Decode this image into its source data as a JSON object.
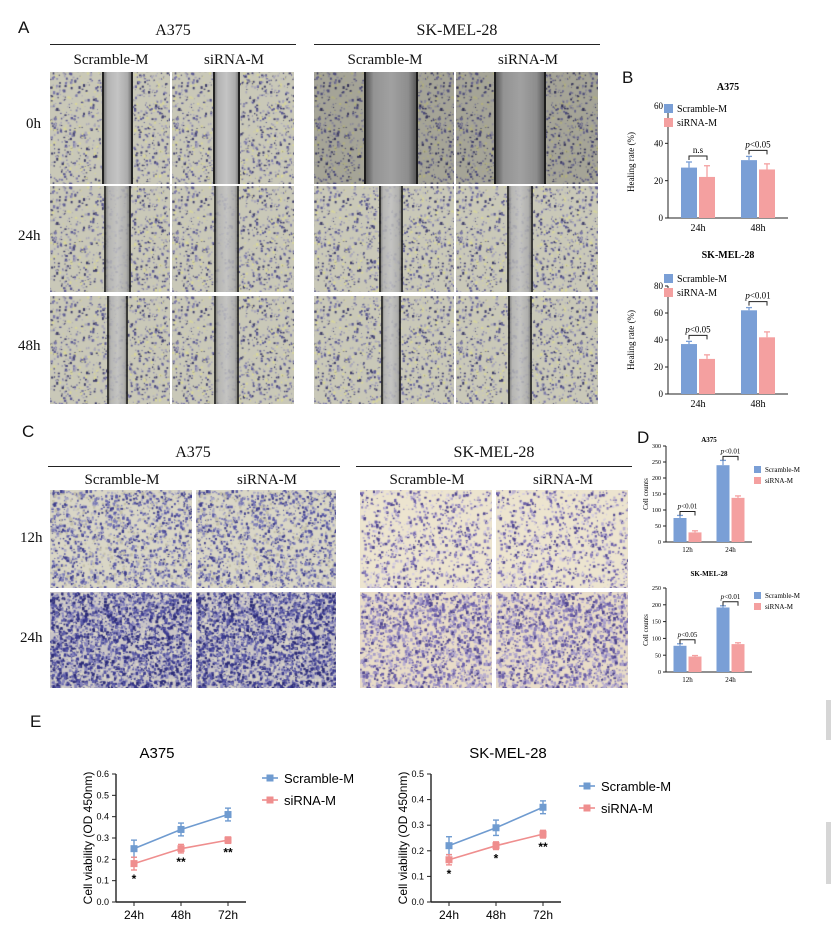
{
  "panels": {
    "a": "A",
    "b": "B",
    "c": "C",
    "d": "D",
    "e": "E"
  },
  "panel_a": {
    "cell_lines": [
      "A375",
      "SK-MEL-28"
    ],
    "groups": [
      "Scramble-M",
      "siRNA-M",
      "Scramble-M",
      "siRNA-M"
    ],
    "timepoints": [
      "0h",
      "24h",
      "48h"
    ],
    "wound_widths_relative": [
      [
        0.25,
        0.22,
        0.38,
        0.36
      ],
      [
        0.22,
        0.2,
        0.17,
        0.18
      ],
      [
        0.17,
        0.2,
        0.14,
        0.17
      ]
    ]
  },
  "panel_c": {
    "cell_lines": [
      "A375",
      "SK-MEL-28"
    ],
    "groups": [
      "Scramble-M",
      "siRNA-M",
      "Scramble-M",
      "siRNA-M"
    ],
    "timepoints": [
      "12h",
      "24h"
    ]
  },
  "colors": {
    "scramble": "#7a9fd6",
    "sirna": "#f4a0a0",
    "scramble_line": "#6f9bd0",
    "sirna_line": "#ef8e8e"
  },
  "chart_data": [
    {
      "id": "B-top",
      "type": "bar",
      "title": "A375",
      "xlabel": "",
      "ylabel": "Healing rate (%)",
      "categories": [
        "24h",
        "48h"
      ],
      "ylim": [
        0,
        60
      ],
      "yticks": [
        0,
        20,
        40,
        60
      ],
      "series": [
        {
          "name": "Scramble-M",
          "values": [
            27,
            31
          ],
          "errors": [
            3,
            2
          ]
        },
        {
          "name": "siRNA-M",
          "values": [
            22,
            26
          ],
          "errors": [
            6,
            3
          ]
        }
      ],
      "annotations": [
        "n.s",
        "p<0.05"
      ]
    },
    {
      "id": "B-bottom",
      "type": "bar",
      "title": "SK-MEL-28",
      "xlabel": "",
      "ylabel": "Healing rate (%)",
      "categories": [
        "24h",
        "48h"
      ],
      "ylim": [
        0,
        80
      ],
      "yticks": [
        0,
        20,
        40,
        60,
        80
      ],
      "series": [
        {
          "name": "Scramble-M",
          "values": [
            37,
            62
          ],
          "errors": [
            2,
            2
          ]
        },
        {
          "name": "siRNA-M",
          "values": [
            26,
            42
          ],
          "errors": [
            3,
            4
          ]
        }
      ],
      "annotations": [
        "p<0.05",
        "p<0.01"
      ]
    },
    {
      "id": "D-top",
      "type": "bar",
      "title": "A375",
      "xlabel": "",
      "ylabel": "Cell counts",
      "categories": [
        "12h",
        "24h"
      ],
      "ylim": [
        0,
        300
      ],
      "yticks": [
        0,
        50,
        100,
        150,
        200,
        250,
        300
      ],
      "series": [
        {
          "name": "Scramble-M",
          "values": [
            75,
            240
          ],
          "errors": [
            8,
            15
          ]
        },
        {
          "name": "siRNA-M",
          "values": [
            30,
            138
          ],
          "errors": [
            5,
            6
          ]
        }
      ],
      "annotations": [
        "p<0.01",
        "p<0.01"
      ]
    },
    {
      "id": "D-bottom",
      "type": "bar",
      "title": "SK-MEL-28",
      "xlabel": "",
      "ylabel": "Cell counts",
      "categories": [
        "12h",
        "24h"
      ],
      "ylim": [
        0,
        250
      ],
      "yticks": [
        0,
        50,
        100,
        150,
        200,
        250
      ],
      "series": [
        {
          "name": "Scramble-M",
          "values": [
            78,
            192
          ],
          "errors": [
            6,
            5
          ]
        },
        {
          "name": "siRNA-M",
          "values": [
            46,
            83
          ],
          "errors": [
            3,
            4
          ]
        }
      ],
      "annotations": [
        "p<0.05",
        "p<0.01"
      ]
    },
    {
      "id": "E-left",
      "type": "line",
      "title": "A375",
      "xlabel": "",
      "ylabel": "Cell viability (OD 450nm)",
      "x": [
        "24h",
        "48h",
        "72h"
      ],
      "ylim": [
        0,
        0.6
      ],
      "yticks": [
        0.0,
        0.1,
        0.2,
        0.3,
        0.4,
        0.5,
        0.6
      ],
      "series": [
        {
          "name": "Scramble-M",
          "values": [
            0.25,
            0.34,
            0.41
          ],
          "errors": [
            0.04,
            0.03,
            0.03
          ]
        },
        {
          "name": "siRNA-M",
          "values": [
            0.18,
            0.25,
            0.29
          ],
          "errors": [
            0.03,
            0.02,
            0.015
          ]
        }
      ],
      "significance": [
        "*",
        "**",
        "**"
      ]
    },
    {
      "id": "E-right",
      "type": "line",
      "title": "SK-MEL-28",
      "xlabel": "",
      "ylabel": "Cell viability (OD 450nm)",
      "x": [
        "24h",
        "48h",
        "72h"
      ],
      "ylim": [
        0,
        0.5
      ],
      "yticks": [
        0.0,
        0.1,
        0.2,
        0.3,
        0.4,
        0.5
      ],
      "series": [
        {
          "name": "Scramble-M",
          "values": [
            0.22,
            0.29,
            0.37
          ],
          "errors": [
            0.035,
            0.03,
            0.025
          ]
        },
        {
          "name": "siRNA-M",
          "values": [
            0.165,
            0.22,
            0.265
          ],
          "errors": [
            0.02,
            0.015,
            0.015
          ]
        }
      ],
      "significance": [
        "*",
        "*",
        "**"
      ]
    }
  ]
}
